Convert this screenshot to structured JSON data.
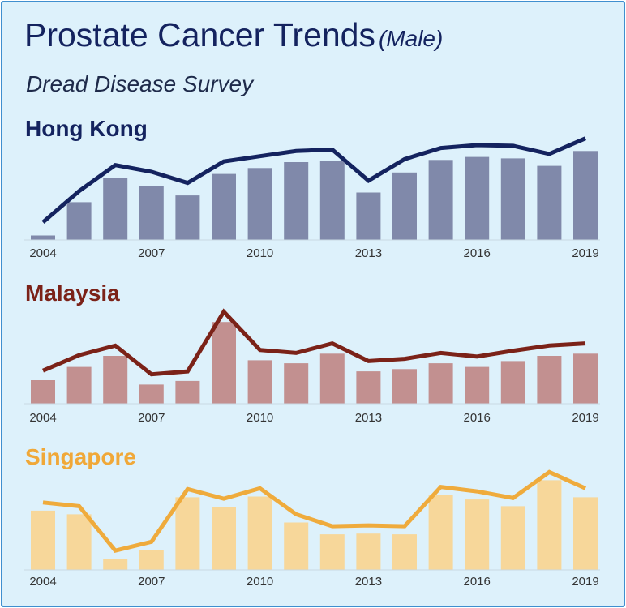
{
  "title": "Prostate Cancer Trends",
  "title_suffix": "(Male)",
  "subtitle": "Dread Disease Survey",
  "chart_data": [
    {
      "type": "bar",
      "name": "hong-kong",
      "title": "Hong Kong",
      "color_title": "#14235f",
      "color_bar": "#8089aa",
      "color_line": "#14235f",
      "categories": [
        2004,
        2005,
        2006,
        2007,
        2008,
        2009,
        2010,
        2011,
        2012,
        2013,
        2014,
        2015,
        2016,
        2017,
        2018,
        2019
      ],
      "tick_labels": [
        "2004",
        "2007",
        "2010",
        "2013",
        "2016",
        "2019"
      ],
      "tick_years": [
        2004,
        2007,
        2010,
        2013,
        2016,
        2019
      ],
      "ylim": [
        0,
        140
      ],
      "series": [
        {
          "name": "bars",
          "type": "bar",
          "values": [
            6,
            51,
            84,
            73,
            60,
            89,
            97,
            105,
            107,
            64,
            91,
            108,
            112,
            110,
            100,
            120
          ]
        },
        {
          "name": "line",
          "type": "line",
          "values": [
            24,
            66,
            101,
            92,
            77,
            106,
            113,
            120,
            122,
            80,
            109,
            124,
            128,
            127,
            116,
            137
          ]
        }
      ]
    },
    {
      "type": "bar",
      "name": "malaysia",
      "title": "Malaysia",
      "color_title": "#7b2218",
      "color_bar": "#c29090",
      "color_line": "#7b2218",
      "categories": [
        2004,
        2005,
        2006,
        2007,
        2008,
        2009,
        2010,
        2011,
        2012,
        2013,
        2014,
        2015,
        2016,
        2017,
        2018,
        2019
      ],
      "tick_labels": [
        "2004",
        "2007",
        "2010",
        "2013",
        "2016",
        "2019"
      ],
      "tick_years": [
        2004,
        2007,
        2010,
        2013,
        2016,
        2019
      ],
      "ylim": [
        0,
        130
      ],
      "series": [
        {
          "name": "bars",
          "type": "bar",
          "values": [
            32,
            50,
            65,
            26,
            31,
            111,
            59,
            55,
            68,
            44,
            47,
            55,
            50,
            58,
            65,
            68
          ]
        },
        {
          "name": "line",
          "type": "line",
          "values": [
            45,
            66,
            79,
            40,
            44,
            125,
            73,
            69,
            82,
            58,
            61,
            69,
            64,
            72,
            79,
            82
          ]
        }
      ]
    },
    {
      "type": "bar",
      "name": "singapore",
      "title": "Singapore",
      "color_title": "#f0a838",
      "color_bar": "#f7d79a",
      "color_line": "#efab3c",
      "categories": [
        2004,
        2005,
        2006,
        2007,
        2008,
        2009,
        2010,
        2011,
        2012,
        2013,
        2014,
        2015,
        2016,
        2017,
        2018,
        2019
      ],
      "tick_labels": [
        "2004",
        "2007",
        "2010",
        "2013",
        "2016",
        "2019"
      ],
      "tick_years": [
        2004,
        2007,
        2010,
        2013,
        2016,
        2019
      ],
      "ylim": [
        0,
        140
      ],
      "series": [
        {
          "name": "bars",
          "type": "bar",
          "values": [
            80,
            75,
            15,
            27,
            98,
            85,
            99,
            64,
            48,
            49,
            48,
            101,
            95,
            86,
            121,
            98
          ]
        },
        {
          "name": "line",
          "type": "line",
          "values": [
            91,
            86,
            26,
            38,
            109,
            96,
            110,
            75,
            59,
            60,
            59,
            112,
            106,
            97,
            132,
            110
          ]
        }
      ]
    }
  ]
}
